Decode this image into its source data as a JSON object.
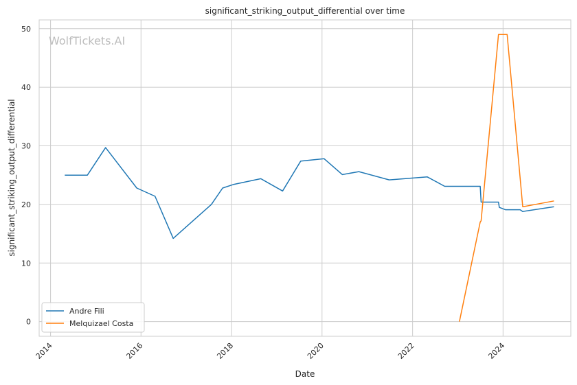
{
  "chart_data": {
    "type": "line",
    "title": "significant_striking_output_differential over time",
    "xlabel": "Date",
    "ylabel": "significant_striking_output_differential",
    "watermark": "WolfTickets.AI",
    "x_type": "date",
    "xlim": [
      "2013-10-01",
      "2025-07-01"
    ],
    "ylim": [
      -2.5,
      51.5
    ],
    "x_ticks": [
      "2014",
      "2016",
      "2018",
      "2020",
      "2022",
      "2024"
    ],
    "y_ticks": [
      0,
      10,
      20,
      30,
      40,
      50
    ],
    "grid": true,
    "legend_position": "lower-left",
    "series": [
      {
        "name": "Andre Fili",
        "color": "#1f77b4",
        "points": [
          [
            "2014-04-26",
            25.0
          ],
          [
            "2014-10-25",
            25.0
          ],
          [
            "2015-03-21",
            29.7
          ],
          [
            "2015-11-28",
            22.8
          ],
          [
            "2016-04-23",
            21.4
          ],
          [
            "2016-09-17",
            14.2
          ],
          [
            "2017-07-22",
            20.0
          ],
          [
            "2017-10-21",
            22.8
          ],
          [
            "2018-01-14",
            23.4
          ],
          [
            "2018-08-25",
            24.4
          ],
          [
            "2019-02-17",
            22.3
          ],
          [
            "2019-07-13",
            27.4
          ],
          [
            "2020-01-18",
            27.8
          ],
          [
            "2020-06-13",
            25.1
          ],
          [
            "2020-10-24",
            25.6
          ],
          [
            "2021-06-26",
            24.2
          ],
          [
            "2022-04-30",
            24.7
          ],
          [
            "2022-09-17",
            23.1
          ],
          [
            "2023-07-01",
            23.1
          ],
          [
            "2023-07-08",
            20.4
          ],
          [
            "2023-11-25",
            20.4
          ],
          [
            "2023-12-02",
            19.5
          ],
          [
            "2024-01-20",
            19.1
          ],
          [
            "2024-05-18",
            19.1
          ],
          [
            "2024-06-08",
            18.8
          ],
          [
            "2025-02-15",
            19.6
          ]
        ]
      },
      {
        "name": "Melquizael Costa",
        "color": "#ff7f0e",
        "points": [
          [
            "2023-01-14",
            0.0
          ],
          [
            "2023-07-01",
            17.0
          ],
          [
            "2023-07-08",
            17.2
          ],
          [
            "2023-11-25",
            49.0
          ],
          [
            "2024-02-03",
            49.0
          ],
          [
            "2024-06-08",
            19.6
          ],
          [
            "2025-02-15",
            20.6
          ]
        ]
      }
    ]
  }
}
